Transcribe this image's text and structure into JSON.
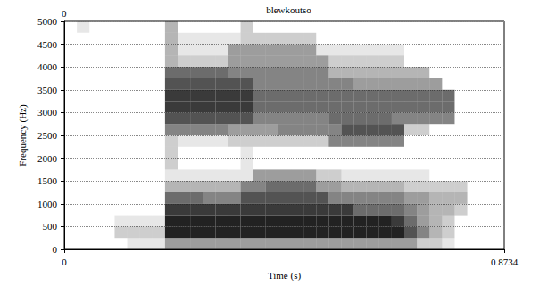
{
  "chart_data": {
    "type": "heatmap",
    "title": "blewkoutso",
    "annotations": [
      "0"
    ],
    "x_label": "Time (s)",
    "y_label": "Frequency (Hz)",
    "xlim": [
      0,
      0.8734
    ],
    "xticks": [
      0,
      0.8734
    ],
    "ylim": [
      0,
      5000
    ],
    "yticks": [
      0,
      500,
      1000,
      1500,
      2000,
      2500,
      3000,
      3500,
      4000,
      4500,
      5000
    ],
    "grid": true,
    "color": "#222222",
    "zlim": [
      0,
      9
    ],
    "x_bins": [
      0,
      0.025,
      0.05,
      0.075,
      0.1,
      0.125,
      0.15,
      0.175,
      0.2,
      0.225,
      0.25,
      0.275,
      0.3,
      0.325,
      0.35,
      0.375,
      0.4,
      0.425,
      0.45,
      0.475,
      0.5,
      0.525,
      0.55,
      0.575,
      0.6,
      0.625,
      0.65,
      0.675,
      0.7,
      0.725,
      0.75,
      0.775,
      0.8,
      0.825,
      0.85,
      0.875
    ],
    "y_bins": [
      0,
      250,
      500,
      750,
      1000,
      1250,
      1500,
      1750,
      2000,
      2250,
      2500,
      2750,
      3000,
      3250,
      3500,
      3750,
      4000,
      4250,
      4500,
      4750,
      5000
    ],
    "values": [
      [
        0,
        0,
        0,
        0,
        0,
        1,
        1,
        1,
        4,
        4,
        4,
        4,
        4,
        4,
        4,
        4,
        4,
        4,
        4,
        4,
        4,
        4,
        4,
        4,
        4,
        4,
        4,
        4,
        2,
        2,
        1,
        0,
        0,
        0,
        0
      ],
      [
        0,
        0,
        0,
        0,
        2,
        2,
        2,
        2,
        9,
        9,
        9,
        9,
        9,
        9,
        9,
        9,
        9,
        9,
        9,
        9,
        9,
        9,
        9,
        9,
        9,
        9,
        9,
        7,
        5,
        3,
        2,
        0,
        0,
        0,
        0
      ],
      [
        0,
        0,
        0,
        0,
        1,
        1,
        1,
        1,
        9,
        9,
        9,
        9,
        9,
        9,
        9,
        9,
        9,
        9,
        9,
        9,
        9,
        9,
        9,
        9,
        9,
        9,
        8,
        6,
        4,
        3,
        2,
        0,
        0,
        0,
        0
      ],
      [
        0,
        0,
        0,
        0,
        0,
        0,
        0,
        0,
        8,
        8,
        8,
        8,
        8,
        8,
        8,
        8,
        8,
        8,
        8,
        8,
        8,
        8,
        8,
        6,
        6,
        6,
        6,
        5,
        4,
        3,
        3,
        2,
        0,
        0,
        0
      ],
      [
        0,
        0,
        0,
        0,
        0,
        0,
        0,
        0,
        6,
        6,
        6,
        5,
        5,
        5,
        7,
        7,
        7,
        7,
        7,
        7,
        7,
        5,
        5,
        5,
        5,
        5,
        5,
        4,
        4,
        3,
        3,
        3,
        0,
        0,
        0
      ],
      [
        0,
        0,
        0,
        0,
        0,
        0,
        0,
        0,
        3,
        3,
        3,
        3,
        3,
        3,
        5,
        5,
        6,
        6,
        6,
        6,
        4,
        4,
        3,
        3,
        3,
        3,
        3,
        2,
        2,
        2,
        2,
        2,
        0,
        0,
        0
      ],
      [
        0,
        0,
        0,
        0,
        0,
        0,
        0,
        0,
        1,
        1,
        1,
        1,
        1,
        1,
        1,
        4,
        4,
        4,
        4,
        4,
        2,
        2,
        1,
        1,
        1,
        1,
        1,
        1,
        1,
        0,
        0,
        0,
        0,
        0,
        0
      ],
      [
        0,
        0,
        0,
        0,
        0,
        0,
        0,
        0,
        2,
        0,
        0,
        0,
        0,
        0,
        1,
        0,
        0,
        0,
        0,
        0,
        0,
        0,
        0,
        0,
        0,
        0,
        0,
        0,
        0,
        0,
        0,
        0,
        0,
        0,
        0
      ],
      [
        0,
        0,
        0,
        0,
        0,
        0,
        0,
        0,
        2,
        0,
        0,
        0,
        0,
        0,
        1,
        0,
        0,
        0,
        0,
        0,
        0,
        0,
        0,
        0,
        0,
        0,
        0,
        0,
        0,
        0,
        0,
        0,
        0,
        0,
        0
      ],
      [
        0,
        0,
        0,
        0,
        0,
        0,
        0,
        0,
        2,
        1,
        1,
        1,
        1,
        2,
        2,
        2,
        2,
        2,
        2,
        2,
        2,
        5,
        5,
        5,
        5,
        5,
        5,
        0,
        0,
        0,
        0,
        0,
        0,
        0,
        0
      ],
      [
        0,
        0,
        0,
        0,
        0,
        0,
        0,
        0,
        5,
        5,
        5,
        5,
        5,
        4,
        4,
        4,
        4,
        5,
        5,
        5,
        5,
        5,
        7,
        7,
        7,
        7,
        7,
        2,
        2,
        0,
        0,
        0,
        0,
        0,
        0
      ],
      [
        0,
        0,
        0,
        0,
        0,
        0,
        0,
        0,
        7,
        7,
        7,
        7,
        7,
        7,
        7,
        5,
        5,
        5,
        5,
        5,
        5,
        6,
        6,
        6,
        6,
        6,
        5,
        5,
        5,
        5,
        5,
        0,
        0,
        0,
        0
      ],
      [
        0,
        0,
        0,
        0,
        0,
        0,
        0,
        0,
        8,
        8,
        8,
        8,
        8,
        8,
        8,
        6,
        6,
        6,
        6,
        6,
        6,
        6,
        6,
        6,
        6,
        6,
        6,
        6,
        6,
        6,
        6,
        0,
        0,
        0,
        0
      ],
      [
        0,
        0,
        0,
        0,
        0,
        0,
        0,
        0,
        8,
        8,
        8,
        8,
        8,
        8,
        8,
        6,
        6,
        6,
        6,
        6,
        6,
        6,
        6,
        6,
        6,
        6,
        6,
        6,
        6,
        6,
        6,
        0,
        0,
        0,
        0
      ],
      [
        0,
        0,
        0,
        0,
        0,
        0,
        0,
        0,
        7,
        7,
        7,
        7,
        7,
        7,
        7,
        5,
        5,
        5,
        5,
        5,
        5,
        5,
        5,
        4,
        4,
        4,
        4,
        4,
        4,
        4,
        0,
        0,
        0,
        0,
        0
      ],
      [
        0,
        0,
        0,
        0,
        0,
        0,
        0,
        0,
        6,
        6,
        6,
        6,
        6,
        5,
        5,
        5,
        5,
        5,
        5,
        5,
        5,
        3,
        3,
        3,
        3,
        3,
        3,
        3,
        3,
        0,
        0,
        0,
        0,
        0,
        0
      ],
      [
        0,
        0,
        0,
        0,
        0,
        0,
        0,
        0,
        3,
        2,
        2,
        2,
        2,
        4,
        4,
        4,
        4,
        4,
        4,
        4,
        4,
        2,
        2,
        2,
        2,
        2,
        2,
        0,
        0,
        0,
        0,
        0,
        0,
        0,
        0
      ],
      [
        0,
        0,
        0,
        0,
        0,
        0,
        0,
        0,
        3,
        1,
        1,
        1,
        1,
        4,
        4,
        4,
        4,
        4,
        4,
        4,
        1,
        1,
        1,
        1,
        1,
        1,
        1,
        0,
        0,
        0,
        0,
        0,
        0,
        0,
        0
      ],
      [
        0,
        0,
        0,
        0,
        0,
        0,
        0,
        0,
        3,
        1,
        1,
        1,
        1,
        1,
        2,
        2,
        2,
        2,
        2,
        2,
        0,
        0,
        0,
        0,
        0,
        0,
        0,
        0,
        0,
        0,
        0,
        0,
        0,
        0,
        0
      ],
      [
        0,
        1,
        0,
        0,
        0,
        0,
        0,
        0,
        3,
        0,
        0,
        0,
        0,
        0,
        2,
        0,
        0,
        0,
        0,
        0,
        0,
        0,
        0,
        0,
        0,
        0,
        0,
        0,
        0,
        0,
        0,
        0,
        0,
        0,
        0
      ]
    ]
  }
}
